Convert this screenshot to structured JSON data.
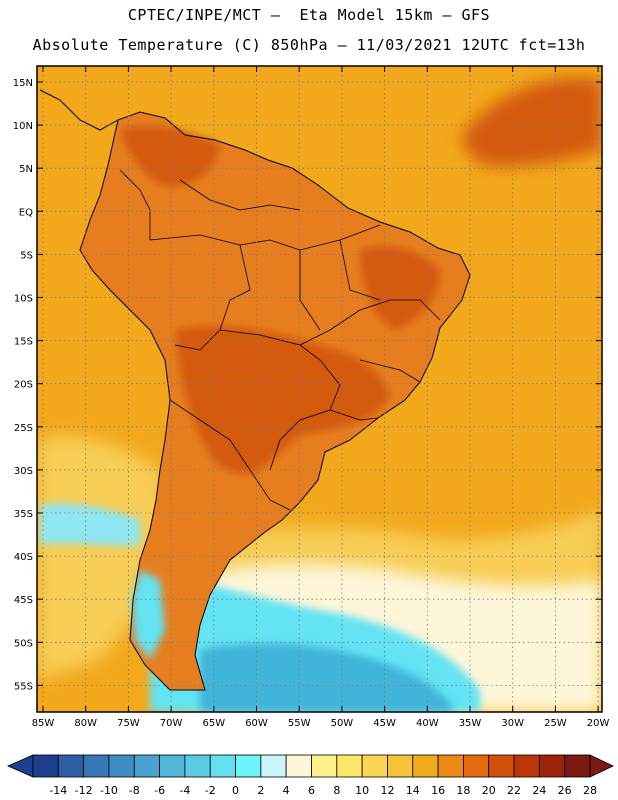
{
  "header": {
    "line1": "CPTEC/INPE/MCT –  Eta Model 15km – GFS",
    "line2": "Absolute Temperature (C) 850hPa – 11/03/2021 12UTC fct=13h"
  },
  "map": {
    "lat_labels": [
      "15N",
      "10N",
      "5N",
      "EQ",
      "5S",
      "10S",
      "15S",
      "20S",
      "25S",
      "30S",
      "35S",
      "40S",
      "45S",
      "50S",
      "55S"
    ],
    "lon_labels": [
      "85W",
      "80W",
      "75W",
      "70W",
      "65W",
      "60W",
      "55W",
      "50W",
      "45W",
      "40W",
      "35W",
      "30W",
      "25W",
      "20W"
    ],
    "gridlines": "dotted",
    "features": [
      "South America coastline",
      "country borders",
      "Brazilian state borders"
    ],
    "field_colors": {
      "land_warm": "#e67e1f",
      "land_hot": "#d45a0c",
      "ocean_warm": "#f3a81c",
      "ocean_mild": "#f7cd55",
      "ocean_cool": "#fdf6d9",
      "cold_water": "#63e3f3",
      "colder_water": "#3fb4d9"
    }
  },
  "colorbar": {
    "labels": [
      "-14",
      "-12",
      "-10",
      "-8",
      "-6",
      "-4",
      "-2",
      "0",
      "2",
      "4",
      "6",
      "8",
      "10",
      "12",
      "14",
      "16",
      "18",
      "20",
      "22",
      "24",
      "26",
      "28"
    ],
    "colors": [
      "#1d3f8c",
      "#2a5ea6",
      "#3677b8",
      "#3f8dc4",
      "#49a2cf",
      "#52b5da",
      "#5ccce4",
      "#64dff0",
      "#6cf4fb",
      "#c9f4fb",
      "#fdf6d9",
      "#fdf28a",
      "#fde86c",
      "#f9d651",
      "#f5c239",
      "#f2ab1c",
      "#eb8a13",
      "#e36b0e",
      "#d34f0a",
      "#bb3608",
      "#9d2306",
      "#7a1a12"
    ]
  }
}
